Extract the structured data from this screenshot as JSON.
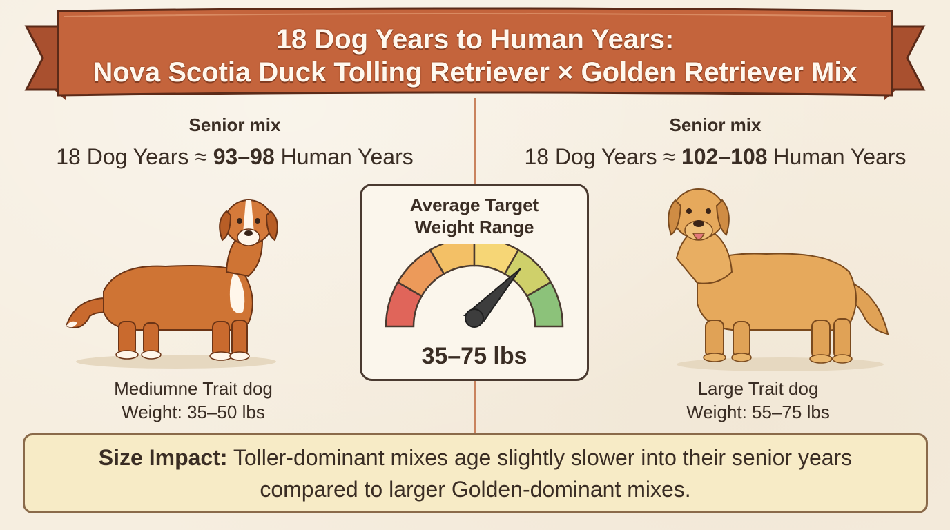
{
  "banner": {
    "title_line1": "18 Dog Years to Human Years:",
    "title_line2": "Nova Scotia Duck Tolling Retriever × Golden Retriever Mix"
  },
  "left": {
    "label": "Senior mix",
    "years_prefix": "18 Dog Years ≈ ",
    "years_value": "93–98",
    "years_suffix": " Human Years",
    "caption_line1": "Mediumne Trait dog",
    "caption_line2": "Weight: 35–50 lbs",
    "dog_icon": "toller-dog-illustration"
  },
  "right": {
    "label": "Senior mix",
    "years_prefix": "18 Dog Years ≈ ",
    "years_value": "102–108",
    "years_suffix": " Human Years",
    "caption_line1": "Large Trait dog",
    "caption_line2": "Weight: 55–75 lbs",
    "dog_icon": "golden-retriever-illustration"
  },
  "gauge": {
    "title_line1": "Average Target",
    "title_line2": "Weight Range",
    "value": "35–75 lbs",
    "segment_colors": [
      "#e0655a",
      "#ec9a5a",
      "#f3c066",
      "#f6d676",
      "#cfd06a",
      "#8cc27a"
    ]
  },
  "note": {
    "bold": "Size Impact:",
    "text": " Toller-dominant mixes age slightly slower into their senior years compared to larger Golden-dominant mixes."
  },
  "colors": {
    "banner": "#c4643c",
    "background": "#f6eee0",
    "note_background": "#f7ebc6"
  }
}
